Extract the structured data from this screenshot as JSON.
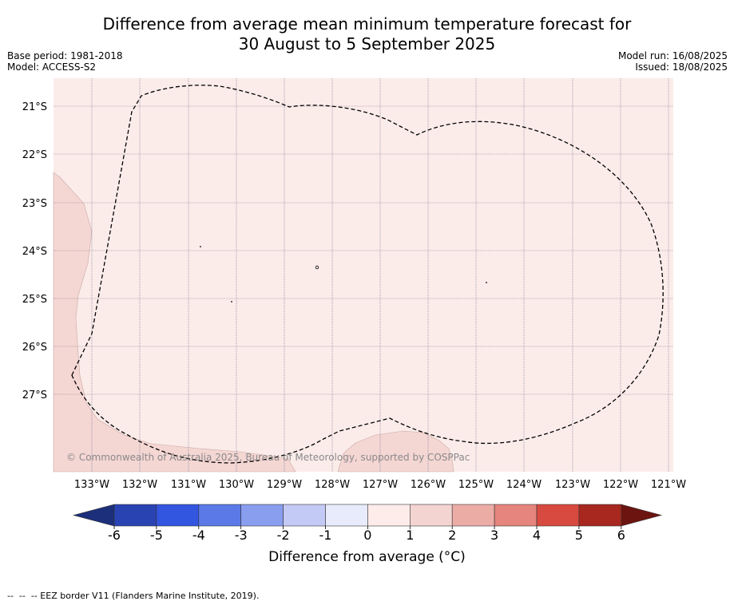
{
  "title": {
    "line1": "Difference from average mean minimum temperature forecast for",
    "line2": "30 August to 5 September 2025"
  },
  "meta_left": [
    "Base period: 1981-2018",
    "Model: ACCESS-S2"
  ],
  "meta_right": [
    "Model run: 16/08/2025",
    "Issued: 18/08/2025"
  ],
  "map": {
    "lat_labels": [
      "21°S",
      "22°S",
      "23°S",
      "24°S",
      "25°S",
      "26°S",
      "27°S"
    ],
    "lon_labels": [
      "133°W",
      "132°W",
      "131°W",
      "130°W",
      "129°W",
      "128°W",
      "127°W",
      "126°W",
      "125°W",
      "124°W",
      "123°W",
      "122°W",
      "121°W"
    ],
    "copyright": "© Commonwealth of Australia 2025, Bureau of Meteorology, supported by COSPPac",
    "background_color": "#fbecea",
    "patch_color": "#f4d6d3",
    "eez_border_style": "dashed"
  },
  "colorbar": {
    "ticks": [
      "-6",
      "-5",
      "-4",
      "-3",
      "-2",
      "-1",
      "0",
      "1",
      "2",
      "3",
      "4",
      "5",
      "6"
    ],
    "colors": [
      "#1c2f7a",
      "#2a43b3",
      "#3356e0",
      "#5b7ae8",
      "#8a9ef0",
      "#c3caf5",
      "#e8ebfb",
      "#fdecea",
      "#f4d4d1",
      "#ecaca6",
      "#e5857d",
      "#d84a3f",
      "#a8271f",
      "#6b1410"
    ],
    "label": "Difference from average (°C)"
  },
  "footer": "--  --  -- EEZ border V11 (Flanders Marine Institute, 2019)."
}
